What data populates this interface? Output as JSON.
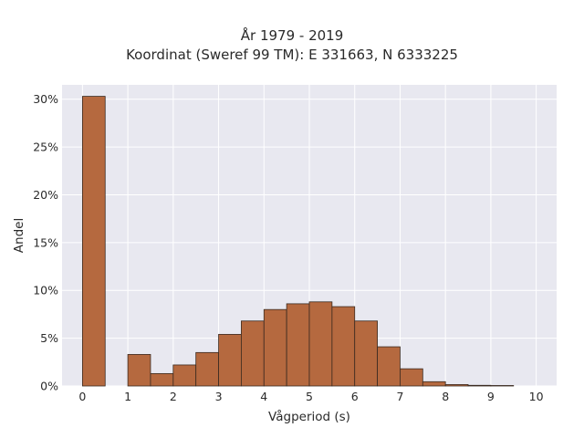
{
  "chart_data": {
    "type": "bar",
    "title": "År 1979 - 2019",
    "subtitle": "Koordinat (Sweref 99 TM): E 331663, N 6333225",
    "xlabel": "Vågperiod (s)",
    "ylabel": "Andel",
    "xlim": [
      -0.45,
      10.45
    ],
    "ylim": [
      0,
      31.5
    ],
    "x_ticks": [
      "0",
      "1",
      "2",
      "3",
      "4",
      "5",
      "6",
      "7",
      "8",
      "9",
      "10"
    ],
    "y_ticks": [
      "0%",
      "5%",
      "10%",
      "15%",
      "20%",
      "25%",
      "30%"
    ],
    "bin_width": 0.5,
    "bins_left": [
      0,
      0.5,
      1,
      1.5,
      2,
      2.5,
      3,
      3.5,
      4,
      4.5,
      5,
      5.5,
      6,
      6.5,
      7,
      7.5,
      8,
      8.5,
      9
    ],
    "values": [
      30.3,
      0,
      3.3,
      1.3,
      2.2,
      3.5,
      5.4,
      6.8,
      8.0,
      8.6,
      8.8,
      8.3,
      6.8,
      4.1,
      1.8,
      0.45,
      0.15,
      0.07,
      0.05
    ],
    "bar_color": "#b5693f",
    "bar_edge_color": "#3a2a20",
    "plot_background": "#e8e8f0",
    "grid": true
  }
}
